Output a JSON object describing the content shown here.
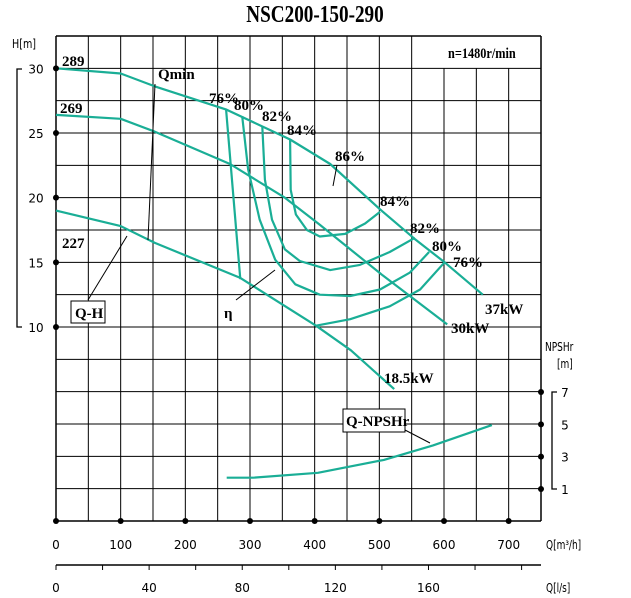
{
  "chart_data": {
    "type": "line",
    "title": "NSC200-150-290",
    "speed_label": "n=1480r/min",
    "y_label": "H[m]",
    "y2_label_line1": "NPSHr",
    "y2_label_line2": "[m]",
    "x_label": "Q[m³/h]",
    "x2_label": "Q[l/s]",
    "xlim": [
      0,
      750
    ],
    "ylim": [
      -5,
      32.5
    ],
    "y2lim": [
      -1,
      7
    ],
    "grid": true,
    "curve_color": "#1aae96",
    "x_ticks": [
      0,
      100,
      200,
      300,
      400,
      500,
      600,
      700
    ],
    "x2_ticks": [
      0,
      40,
      80,
      120,
      160
    ],
    "y_ticks": [
      10,
      15,
      20,
      25,
      30
    ],
    "y2_ticks": [
      1,
      3,
      5,
      7
    ],
    "qh_curves": [
      {
        "name": "289",
        "power": "37kW",
        "points": [
          [
            0,
            30
          ],
          [
            100,
            29.6
          ],
          [
            153,
            28.6
          ],
          [
            264,
            26.8
          ],
          [
            362,
            24.5
          ],
          [
            424,
            22.6
          ],
          [
            501,
            19.1
          ],
          [
            555,
            16.8
          ],
          [
            601,
            15.0
          ],
          [
            660,
            12.5
          ]
        ]
      },
      {
        "name": "269",
        "power": "30kW",
        "points": [
          [
            0,
            26.4
          ],
          [
            100,
            26.1
          ],
          [
            153,
            25.1
          ],
          [
            269,
            22.6
          ],
          [
            354,
            20.0
          ],
          [
            408,
            17.9
          ],
          [
            505,
            14.0
          ],
          [
            605,
            10.2
          ]
        ]
      },
      {
        "name": "227",
        "power": "18.5kW",
        "points": [
          [
            0,
            19.0
          ],
          [
            100,
            17.8
          ],
          [
            153,
            16.5
          ],
          [
            285,
            13.8
          ],
          [
            402,
            10.1
          ],
          [
            456,
            8.2
          ],
          [
            523,
            5.2
          ]
        ]
      }
    ],
    "efficiency_curves": [
      {
        "name": "76%",
        "points": [
          [
            263,
            26.8
          ],
          [
            285,
            13.7
          ]
        ]
      },
      {
        "name": "80%",
        "points": [
          [
            288,
            26.3
          ],
          [
            297,
            22.2
          ],
          [
            315,
            18.3
          ],
          [
            339,
            15.2
          ],
          [
            370,
            13.3
          ],
          [
            408,
            12.5
          ],
          [
            455,
            12.4
          ],
          [
            501,
            12.9
          ],
          [
            547,
            14.2
          ],
          [
            577,
            15.8
          ]
        ]
      },
      {
        "name": "82%",
        "points": [
          [
            319,
            25.5
          ],
          [
            323,
            21.4
          ],
          [
            334,
            18.3
          ],
          [
            354,
            16.0
          ],
          [
            377,
            15.1
          ],
          [
            424,
            14.4
          ],
          [
            470,
            14.8
          ],
          [
            516,
            15.8
          ],
          [
            555,
            16.9
          ]
        ]
      },
      {
        "name": "84%",
        "points": [
          [
            362,
            24.5
          ],
          [
            363,
            20.6
          ],
          [
            371,
            18.7
          ],
          [
            388,
            17.5
          ],
          [
            408,
            17.0
          ],
          [
            447,
            17.2
          ],
          [
            478,
            18.0
          ],
          [
            501,
            18.9
          ]
        ]
      },
      {
        "name": "76%",
        "points": [
          [
            402,
            10.1
          ],
          [
            455,
            10.6
          ],
          [
            516,
            11.6
          ],
          [
            563,
            12.9
          ],
          [
            601,
            15.0
          ]
        ]
      }
    ],
    "efficiency_peak_label": "86%",
    "npsh_curve": {
      "name": "Q-NPSHr",
      "points": [
        [
          264,
          1.7
        ],
        [
          305,
          1.7
        ],
        [
          405,
          2.0
        ],
        [
          507,
          2.8
        ],
        [
          583,
          3.7
        ],
        [
          674,
          4.95
        ]
      ]
    },
    "annotations": {
      "qmin": "Qmin",
      "qh": "Q-H",
      "eta": "η",
      "npsh": "Q-NPSHr"
    }
  }
}
